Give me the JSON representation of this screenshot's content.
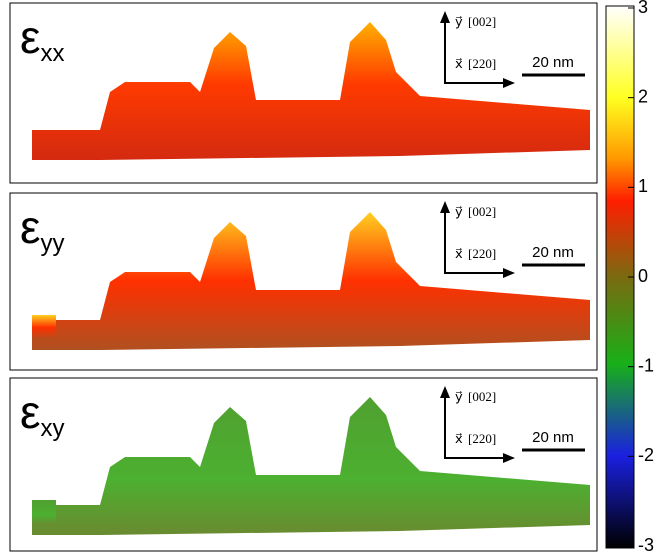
{
  "panels": [
    {
      "label": "ε",
      "subscript": "xx",
      "y_vector": "y⃗",
      "y_direction": "[002]",
      "x_vector": "x⃗",
      "x_direction": "[220]",
      "scale_bar": "20 nm"
    },
    {
      "label": "ε",
      "subscript": "yy",
      "y_vector": "y⃗",
      "y_direction": "[002]",
      "x_vector": "x⃗",
      "x_direction": "[220]",
      "scale_bar": "20 nm"
    },
    {
      "label": "ε",
      "subscript": "xy",
      "y_vector": "y⃗",
      "y_direction": "[002]",
      "x_vector": "x⃗",
      "x_direction": "[220]",
      "scale_bar": "20 nm"
    }
  ],
  "colorbar": {
    "lim": [
      -3,
      3
    ],
    "ticks": [
      3,
      2,
      1,
      0,
      -1,
      -2,
      -3
    ]
  }
}
